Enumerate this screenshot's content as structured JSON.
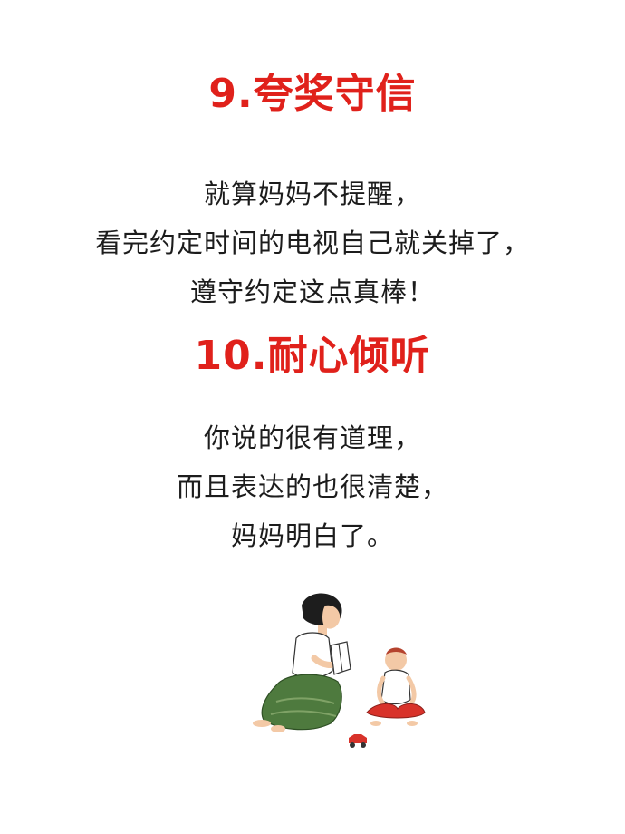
{
  "section9": {
    "title": "9.夸奖守信",
    "lines": [
      "就算妈妈不提醒，",
      "看完约定时间的电视自己就关掉了，",
      "遵守约定这点真棒！"
    ]
  },
  "section10": {
    "title": "10.耐心倾听",
    "lines": [
      "你说的很有道理，",
      "而且表达的也很清楚，",
      "妈妈明白了。"
    ]
  },
  "colors": {
    "heading": "#e0211b",
    "text": "#1c1c1c",
    "background": "#ffffff",
    "skirt": "#4e7a3e",
    "shorts": "#d8322a"
  },
  "illustration": {
    "description_icon": "mother-reading-to-child-icon"
  }
}
